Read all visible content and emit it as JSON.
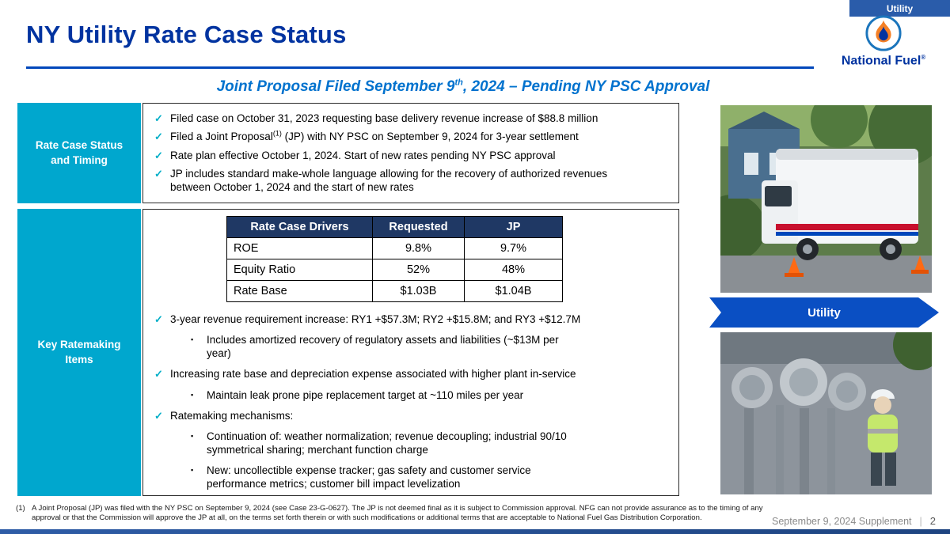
{
  "top_tab": {
    "label": "Utility"
  },
  "header": {
    "title": "NY Utility Rate Case Status",
    "brand": {
      "name": "National Fuel",
      "registered": "®"
    }
  },
  "subtitle": {
    "part1": "Joint Proposal Filed September 9",
    "sup": "th",
    "part2": ", 2024 – Pending NY PSC Approval"
  },
  "left_labels": {
    "section1": "Rate Case Status and Timing",
    "section2": "Key Ratemaking Items"
  },
  "status_bullets": [
    {
      "level": 0,
      "parts": [
        {
          "t": "Filed case on October 31, 2023 requesting base delivery revenue increase of $88.8 million"
        }
      ]
    },
    {
      "level": 0,
      "parts": [
        {
          "t": "Filed a Joint Proposal"
        },
        {
          "t": "(1)",
          "sup": true
        },
        {
          "t": " (JP) with NY PSC on September 9, 2024 for 3-year settlement"
        }
      ]
    },
    {
      "level": 0,
      "parts": [
        {
          "t": "Rate plan effective October 1, 2024. Start of new rates pending NY PSC approval"
        }
      ]
    },
    {
      "level": 0,
      "parts": [
        {
          "t": "JP includes standard make-whole language allowing for the recovery of authorized revenues between October 1, 2024 and the start of new rates"
        }
      ]
    }
  ],
  "table": {
    "headers": [
      "Rate Case Drivers",
      "Requested",
      "JP"
    ],
    "rows": [
      [
        "ROE",
        "9.8%",
        "9.7%"
      ],
      [
        "Equity Ratio",
        "52%",
        "48%"
      ],
      [
        "Rate Base",
        "$1.03B",
        "$1.04B"
      ]
    ]
  },
  "ratemaking_bullets": [
    {
      "level": 0,
      "parts": [
        {
          "t": "3-year revenue requirement increase: RY1 +$57.3M; RY2 +$15.8M; and RY3 +$12.7M"
        }
      ]
    },
    {
      "level": 1,
      "parts": [
        {
          "t": "Includes amortized recovery of regulatory assets and liabilities (~$13M per year)"
        }
      ]
    },
    {
      "level": 0,
      "parts": [
        {
          "t": "Increasing rate base and depreciation expense associated with higher plant in-service"
        }
      ]
    },
    {
      "level": 1,
      "parts": [
        {
          "t": "Maintain leak prone pipe replacement target at ~110 miles per year"
        }
      ]
    },
    {
      "level": 0,
      "parts": [
        {
          "t": "Ratemaking mechanisms:"
        }
      ]
    },
    {
      "level": 1,
      "parts": [
        {
          "t": "Continuation of: weather normalization; revenue decoupling; industrial 90/10 symmetrical sharing; merchant function charge"
        }
      ]
    },
    {
      "level": 1,
      "parts": [
        {
          "t": "New: uncollectible expense tracker; gas safety and customer service performance metrics; customer bill impact levelization"
        }
      ]
    }
  ],
  "arrow_banner": {
    "label": "Utility"
  },
  "footnote": {
    "marker": "(1)",
    "text": "A Joint Proposal (JP) was filed with the NY PSC on September 9, 2024 (see Case 23-G-0627). The JP is not deemed final as it is subject to Commission approval. NFG can not provide assurance as to the timing of any approval or that the Commission will approve the JP at all, on the terms set forth therein or with such modifications or additional terms that are acceptable to National Fuel Gas Distribution Corporation."
  },
  "footer": {
    "label": "September 9, 2024 Supplement",
    "separator": "|",
    "page": "2"
  },
  "colors": {
    "brand_navy": "#0033A0",
    "cyan_box": "#00A7CE",
    "table_header_navy": "#1F3864",
    "subtitle_blue": "#0072CE",
    "arrow_blue": "#0A4FC3",
    "check_cyan": "#00AEC7"
  }
}
